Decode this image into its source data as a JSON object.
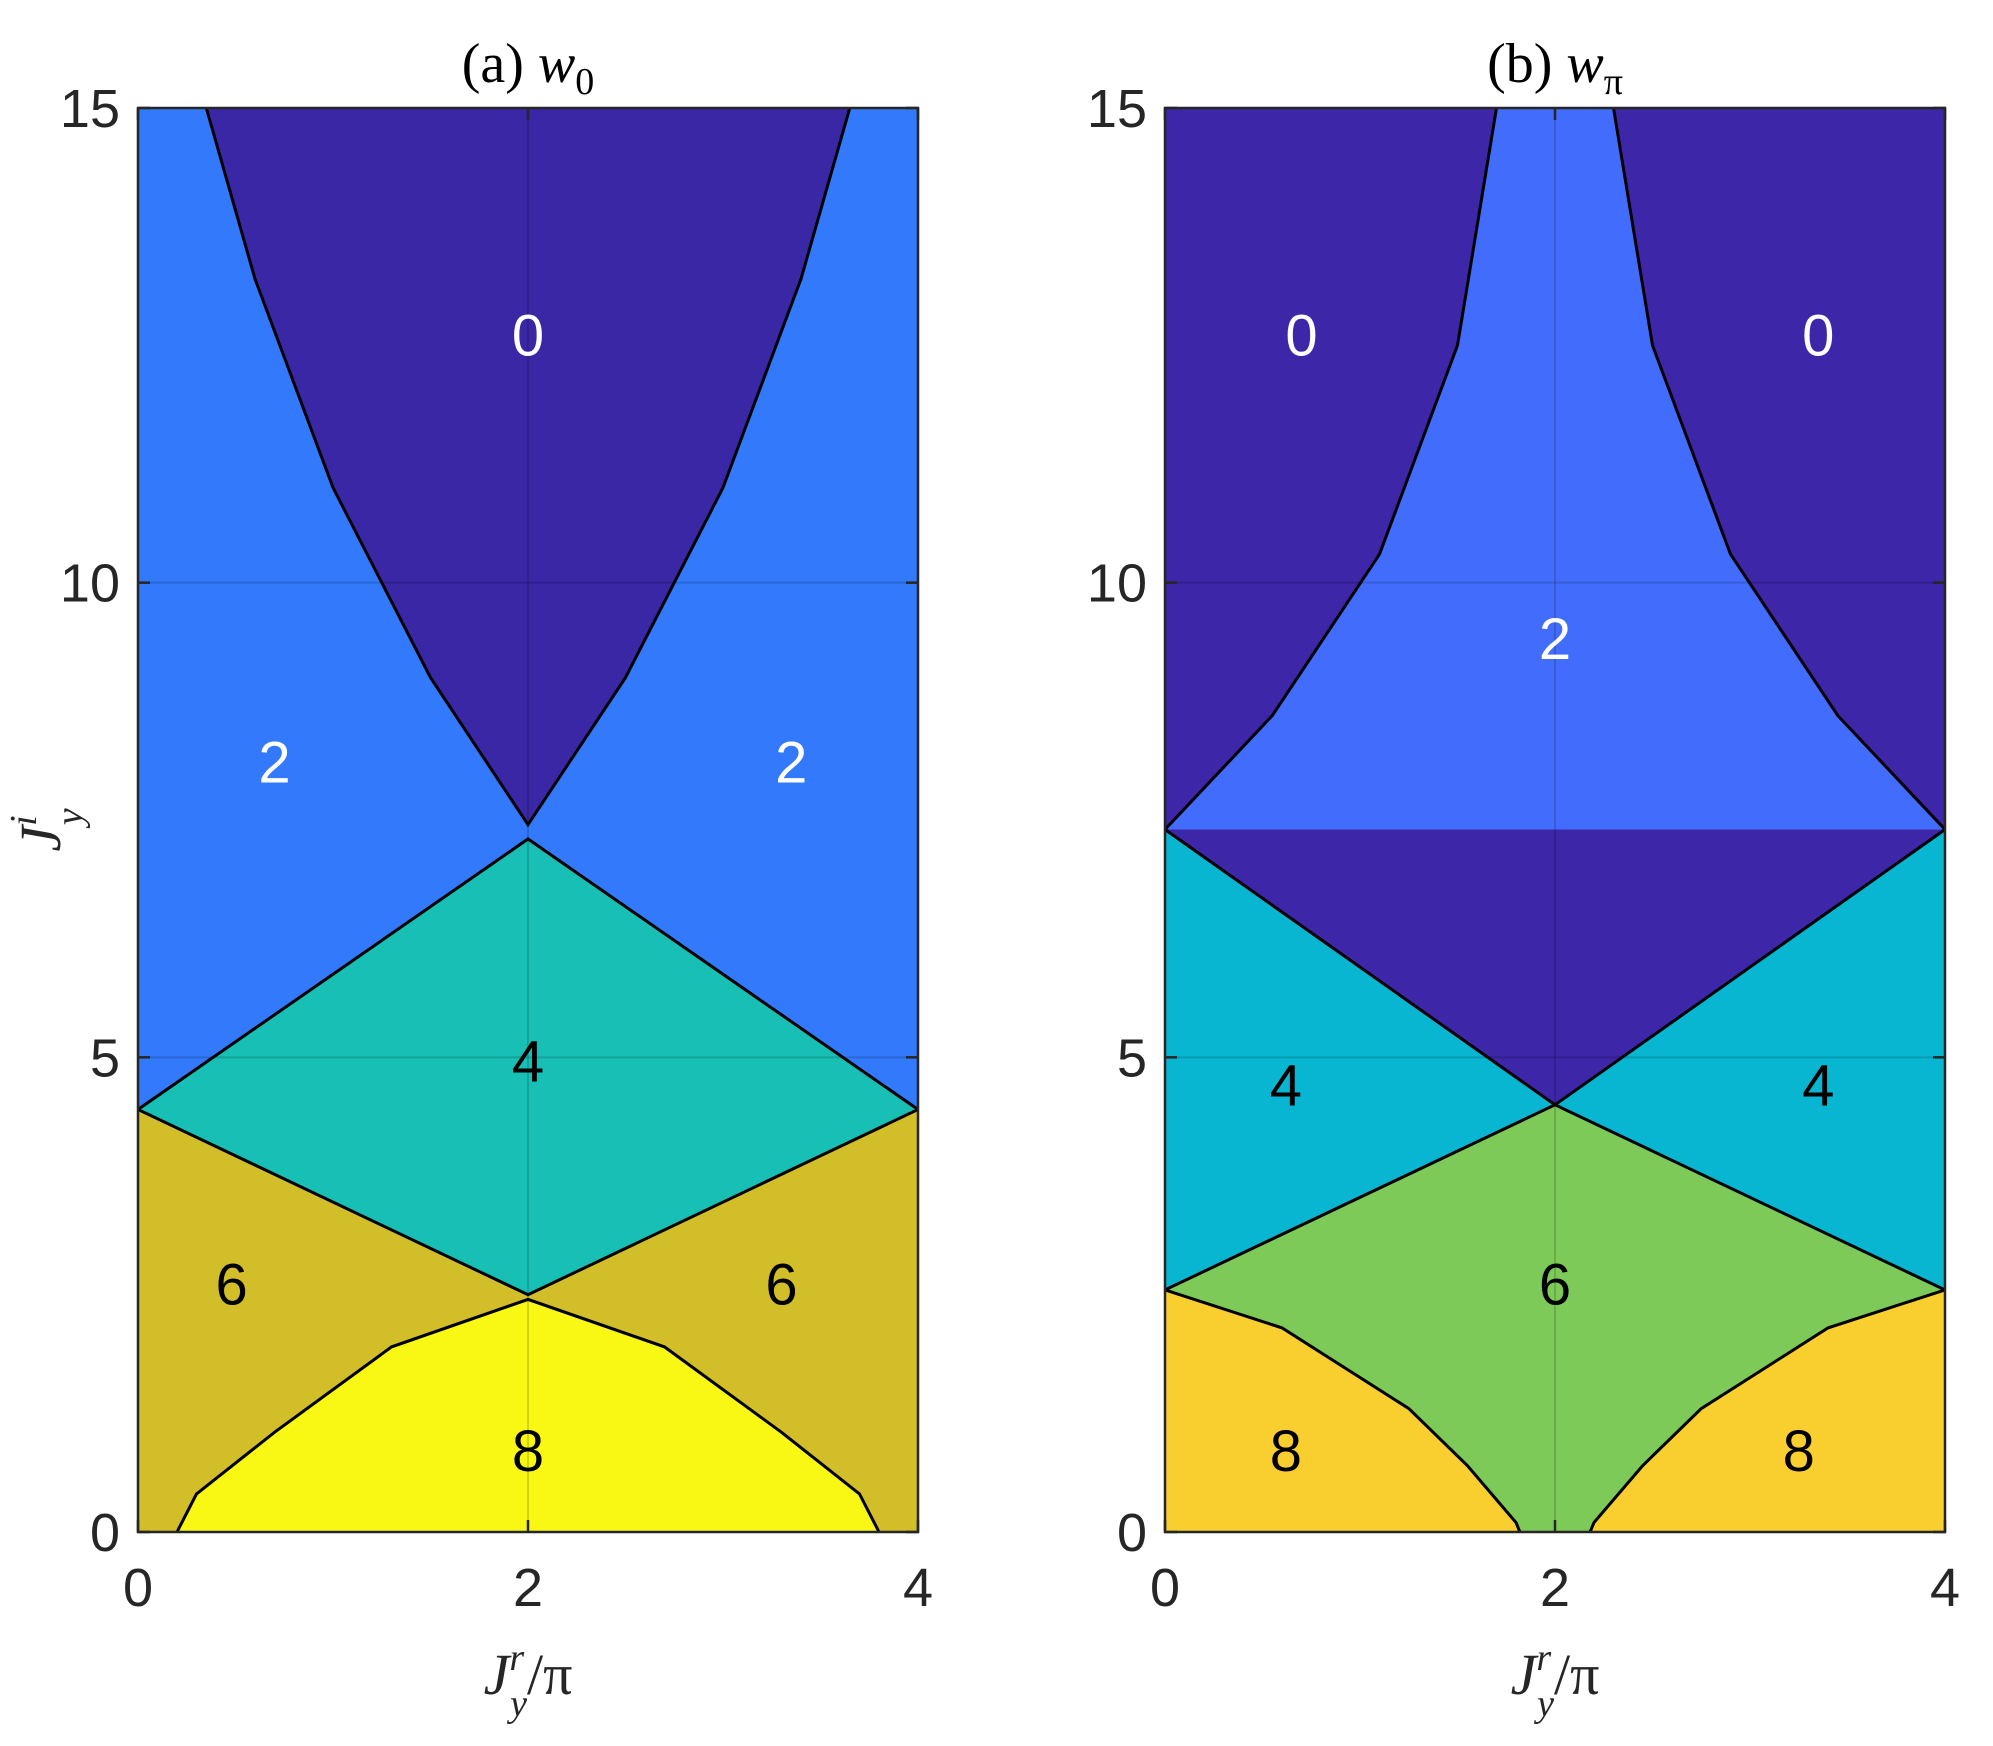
{
  "chart_data": [
    {
      "type": "heatmap",
      "title": "(a) w_0",
      "title_parts": {
        "prefix": "(a) ",
        "symbol": "w",
        "subscript": "0"
      },
      "xlabel": "J_y^r/π",
      "ylabel": "J_y^i",
      "xlim": [
        0,
        4
      ],
      "ylim": [
        0,
        15
      ],
      "xticks": [
        "0",
        "2",
        "4"
      ],
      "yticks": [
        "0",
        "5",
        "10",
        "15"
      ],
      "grid": true,
      "background_value": 2,
      "phase_boundaries": {
        "upper_curve": [
          [
            0.35,
            15
          ],
          [
            0.6,
            13.2
          ],
          [
            1.0,
            11.0
          ],
          [
            1.5,
            9.0
          ],
          [
            2.0,
            7.45
          ],
          [
            2.5,
            9.0
          ],
          [
            3.0,
            11.0
          ],
          [
            3.4,
            13.2
          ],
          [
            3.65,
            15
          ]
        ],
        "diamond_top": [
          [
            0,
            4.45
          ],
          [
            2.0,
            7.3
          ],
          [
            4.0,
            4.45
          ]
        ],
        "diamond_bottom": [
          [
            0,
            4.45
          ],
          [
            2.0,
            2.5
          ],
          [
            4.0,
            4.45
          ]
        ],
        "lower_curve": [
          [
            0.2,
            0
          ],
          [
            0.3,
            0.4
          ],
          [
            0.7,
            1.05
          ],
          [
            1.3,
            1.95
          ],
          [
            2.0,
            2.45
          ],
          [
            2.7,
            1.95
          ],
          [
            3.3,
            1.05
          ],
          [
            3.7,
            0.4
          ],
          [
            3.8,
            0
          ]
        ]
      },
      "regions": [
        {
          "value": 0,
          "color": "#3A27A6",
          "label": "0",
          "label_at": [
            2.0,
            12.6
          ],
          "label_color": "#ffffff"
        },
        {
          "value": 2,
          "color": "#327AFB",
          "label": "2",
          "label_at": [
            0.7,
            8.1
          ],
          "label_color": "#ffffff"
        },
        {
          "value": 2,
          "color": "#327AFB",
          "label": "2",
          "label_at": [
            3.35,
            8.1
          ],
          "label_color": "#ffffff"
        },
        {
          "value": 4,
          "color": "#18BFB5",
          "label": "4",
          "label_at": [
            2.0,
            4.95
          ],
          "label_color": "#000000"
        },
        {
          "value": 6,
          "color": "#D1BE28",
          "label": "6",
          "label_at": [
            0.48,
            2.6
          ],
          "label_color": "#000000"
        },
        {
          "value": 6,
          "color": "#D1BE28",
          "label": "6",
          "label_at": [
            3.3,
            2.6
          ],
          "label_color": "#000000"
        },
        {
          "value": 8,
          "color": "#F8F814",
          "label": "8",
          "label_at": [
            2.0,
            0.85
          ],
          "label_color": "#000000"
        }
      ]
    },
    {
      "type": "heatmap",
      "title": "(b) w_π",
      "title_parts": {
        "prefix": "(b) ",
        "symbol": "w",
        "subscript": "π"
      },
      "xlabel": "J_y^r/π",
      "ylabel": "",
      "xlim": [
        0,
        4
      ],
      "ylim": [
        0,
        15
      ],
      "xticks": [
        "0",
        "2",
        "4"
      ],
      "yticks": [
        "0",
        "5",
        "10",
        "15"
      ],
      "grid": true,
      "background_value": 0,
      "phase_boundaries": {
        "left_curve": [
          [
            1.7,
            15
          ],
          [
            1.5,
            12.5
          ],
          [
            1.1,
            10.3
          ],
          [
            0.55,
            8.6
          ],
          [
            0,
            7.4
          ]
        ],
        "right_curve": [
          [
            2.3,
            15
          ],
          [
            2.5,
            12.5
          ],
          [
            2.9,
            10.3
          ],
          [
            3.45,
            8.6
          ],
          [
            4.0,
            7.4
          ]
        ],
        "upper_diamond": [
          [
            0,
            7.4
          ],
          [
            2.0,
            4.5
          ],
          [
            4.0,
            7.4
          ]
        ],
        "lower_diamond": [
          [
            0,
            2.55
          ],
          [
            2.0,
            4.5
          ],
          [
            4.0,
            2.55
          ]
        ],
        "bottom_left_curve": [
          [
            0,
            2.55
          ],
          [
            0.6,
            2.15
          ],
          [
            1.25,
            1.3
          ],
          [
            1.55,
            0.7
          ],
          [
            1.8,
            0.1
          ],
          [
            1.82,
            0
          ]
        ],
        "bottom_right_curve": [
          [
            2.18,
            0
          ],
          [
            2.2,
            0.1
          ],
          [
            2.45,
            0.7
          ],
          [
            2.75,
            1.3
          ],
          [
            3.4,
            2.15
          ],
          [
            4.0,
            2.55
          ]
        ]
      },
      "regions": [
        {
          "value": 0,
          "color": "#3D26A8",
          "label": "0",
          "label_at": [
            0.7,
            12.6
          ],
          "label_color": "#ffffff"
        },
        {
          "value": 0,
          "color": "#3D26A8",
          "label": "0",
          "label_at": [
            3.35,
            12.6
          ],
          "label_color": "#ffffff"
        },
        {
          "value": 2,
          "color": "#426DFC",
          "label": "2",
          "label_at": [
            2.0,
            9.4
          ],
          "label_color": "#ffffff"
        },
        {
          "value": 4,
          "color": "#08B6D1",
          "label": "4",
          "label_at": [
            0.62,
            4.7
          ],
          "label_color": "#000000"
        },
        {
          "value": 4,
          "color": "#08B6D1",
          "label": "4",
          "label_at": [
            3.35,
            4.7
          ],
          "label_color": "#000000"
        },
        {
          "value": 6,
          "color": "#7DCA58",
          "label": "6",
          "label_at": [
            2.0,
            2.6
          ],
          "label_color": "#000000"
        },
        {
          "value": 8,
          "color": "#F9CE2F",
          "label": "8",
          "label_at": [
            0.62,
            0.85
          ],
          "label_color": "#000000"
        },
        {
          "value": 8,
          "color": "#F9CE2F",
          "label": "8",
          "label_at": [
            3.25,
            0.85
          ],
          "label_color": "#000000"
        }
      ]
    }
  ]
}
